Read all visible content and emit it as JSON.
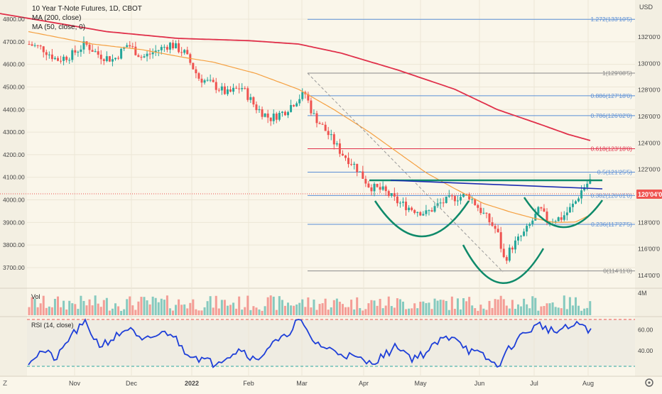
{
  "header": {
    "title": "10 Year T-Note Futures, 1D, CBOT",
    "ma200_label": "MA (200, close)",
    "ma50_label": "MA (50, close, 0)",
    "currency": "USD"
  },
  "left_axis": [
    "4800.00",
    "4700.00",
    "4600.00",
    "4500.00",
    "4400.00",
    "4300.00",
    "4200.00",
    "4100.00",
    "4000.00",
    "3900.00",
    "3800.00",
    "3700.00"
  ],
  "right_axis": [
    "132'00'0",
    "130'00'0",
    "128'00'0",
    "126'00'0",
    "124'00'0",
    "122'00'0",
    "118'00'0",
    "116'00'0",
    "114'00'0"
  ],
  "price_tag": "120'04'0",
  "x_axis": [
    "Nov",
    "Dec",
    "2022",
    "Feb",
    "Mar",
    "Apr",
    "May",
    "Jun",
    "Jul",
    "Aug"
  ],
  "fib_levels": [
    {
      "label": "1.272(133'10'5)",
      "value": 133.328,
      "color": "#5b8fd6"
    },
    {
      "label": "1(129'08'5)",
      "value": 129.266,
      "color": "#8a8a8a"
    },
    {
      "label": "0.886(127'18'0)",
      "value": 127.5625,
      "color": "#5b8fd6"
    },
    {
      "label": "0.786(126'02'0)",
      "value": 126.0625,
      "color": "#5b8fd6"
    },
    {
      "label": "0.618(123'18'0)",
      "value": 123.5625,
      "color": "#e0304a"
    },
    {
      "label": "0.5(121'25'5)",
      "value": 121.797,
      "color": "#5b8fd6"
    },
    {
      "label": "0.382(120'01'0)",
      "value": 120.031,
      "color": "#5b8fd6"
    },
    {
      "label": "0.236(117'27'5)",
      "value": 117.859,
      "color": "#5b8fd6"
    },
    {
      "label": "0(114'11'0)",
      "value": 114.344,
      "color": "#8a8a8a"
    }
  ],
  "volume": {
    "label": "Vol",
    "scale_label": "4M"
  },
  "rsi": {
    "label": "RSI (14, close)",
    "levels": [
      "60.00",
      "40.00"
    ]
  },
  "bottom_left_icon": "Z",
  "bottom_right_icon": "gear-icon",
  "colors": {
    "up": "#26a69a",
    "down": "#ef5350",
    "ma200": "#e0304a",
    "ma50": "#f5a041",
    "rsi": "#1e3fd8",
    "neckline": "#0f8a6a",
    "trend": "#1a2bb0"
  },
  "chart_data": {
    "type": "candlestick",
    "title": "10 Year T-Note Futures, 1D, CBOT",
    "ylabel_left": "",
    "ylabel_right": "USD",
    "ylim_right": [
      113.0,
      134.0
    ],
    "ylim_left": [
      3600,
      4850
    ],
    "series": [
      {
        "name": "MA (200, close)",
        "anchors": [
          [
            0,
            4825
          ],
          [
            150,
            4745
          ],
          [
            250,
            4715
          ],
          [
            350,
            4705
          ],
          [
            420,
            4690
          ],
          [
            480,
            4650
          ],
          [
            560,
            4575
          ],
          [
            640,
            4490
          ],
          [
            700,
            4400
          ],
          [
            760,
            4335
          ],
          [
            800,
            4290
          ],
          [
            832,
            4262
          ]
        ]
      },
      {
        "name": "MA (50, close, 0)",
        "anchors": [
          [
            40,
            4745
          ],
          [
            130,
            4690
          ],
          [
            200,
            4665
          ],
          [
            260,
            4630
          ],
          [
            300,
            4610
          ],
          [
            360,
            4560
          ],
          [
            420,
            4490
          ],
          [
            470,
            4400
          ],
          [
            520,
            4300
          ],
          [
            560,
            4210
          ],
          [
            600,
            4120
          ],
          [
            640,
            4050
          ],
          [
            680,
            3985
          ],
          [
            720,
            3945
          ],
          [
            750,
            3920
          ],
          [
            780,
            3900
          ],
          [
            810,
            3902
          ],
          [
            832,
            3935
          ]
        ]
      }
    ],
    "price_path": [
      [
        40,
        4690
      ],
      [
        60,
        4670
      ],
      [
        80,
        4620
      ],
      [
        100,
        4640
      ],
      [
        120,
        4690
      ],
      [
        140,
        4640
      ],
      [
        160,
        4620
      ],
      [
        180,
        4690
      ],
      [
        200,
        4630
      ],
      [
        220,
        4660
      ],
      [
        240,
        4690
      ],
      [
        260,
        4650
      ],
      [
        280,
        4540
      ],
      [
        300,
        4510
      ],
      [
        320,
        4470
      ],
      [
        340,
        4500
      ],
      [
        360,
        4410
      ],
      [
        380,
        4360
      ],
      [
        400,
        4390
      ],
      [
        420,
        4450
      ],
      [
        430,
        4470
      ],
      [
        440,
        4380
      ],
      [
        460,
        4300
      ],
      [
        480,
        4210
      ],
      [
        500,
        4150
      ],
      [
        520,
        4060
      ],
      [
        540,
        4040
      ],
      [
        560,
        3990
      ],
      [
        580,
        3960
      ],
      [
        600,
        3940
      ],
      [
        620,
        3985
      ],
      [
        640,
        4010
      ],
      [
        660,
        4020
      ],
      [
        680,
        3940
      ],
      [
        700,
        3860
      ],
      [
        710,
        3730
      ],
      [
        720,
        3790
      ],
      [
        740,
        3860
      ],
      [
        760,
        3960
      ],
      [
        770,
        3910
      ],
      [
        790,
        3920
      ],
      [
        800,
        3950
      ],
      [
        810,
        3990
      ],
      [
        820,
        4050
      ],
      [
        832,
        4090
      ]
    ],
    "rsi_path": [
      [
        40,
        30
      ],
      [
        60,
        40
      ],
      [
        80,
        32
      ],
      [
        100,
        55
      ],
      [
        120,
        66
      ],
      [
        140,
        45
      ],
      [
        160,
        52
      ],
      [
        180,
        62
      ],
      [
        200,
        48
      ],
      [
        220,
        55
      ],
      [
        240,
        58
      ],
      [
        260,
        40
      ],
      [
        280,
        33
      ],
      [
        300,
        28
      ],
      [
        320,
        35
      ],
      [
        340,
        42
      ],
      [
        360,
        30
      ],
      [
        380,
        45
      ],
      [
        400,
        52
      ],
      [
        420,
        70
      ],
      [
        440,
        50
      ],
      [
        460,
        42
      ],
      [
        480,
        38
      ],
      [
        500,
        33
      ],
      [
        520,
        28
      ],
      [
        540,
        35
      ],
      [
        560,
        45
      ],
      [
        580,
        33
      ],
      [
        600,
        38
      ],
      [
        620,
        50
      ],
      [
        640,
        55
      ],
      [
        660,
        40
      ],
      [
        680,
        35
      ],
      [
        700,
        25
      ],
      [
        720,
        45
      ],
      [
        740,
        58
      ],
      [
        760,
        65
      ],
      [
        780,
        58
      ],
      [
        800,
        62
      ],
      [
        820,
        66
      ],
      [
        832,
        58
      ]
    ],
    "annotations": [
      "cup-left",
      "cup-middle",
      "cup-right",
      "neckline",
      "trendline",
      "fib-retracement"
    ]
  }
}
